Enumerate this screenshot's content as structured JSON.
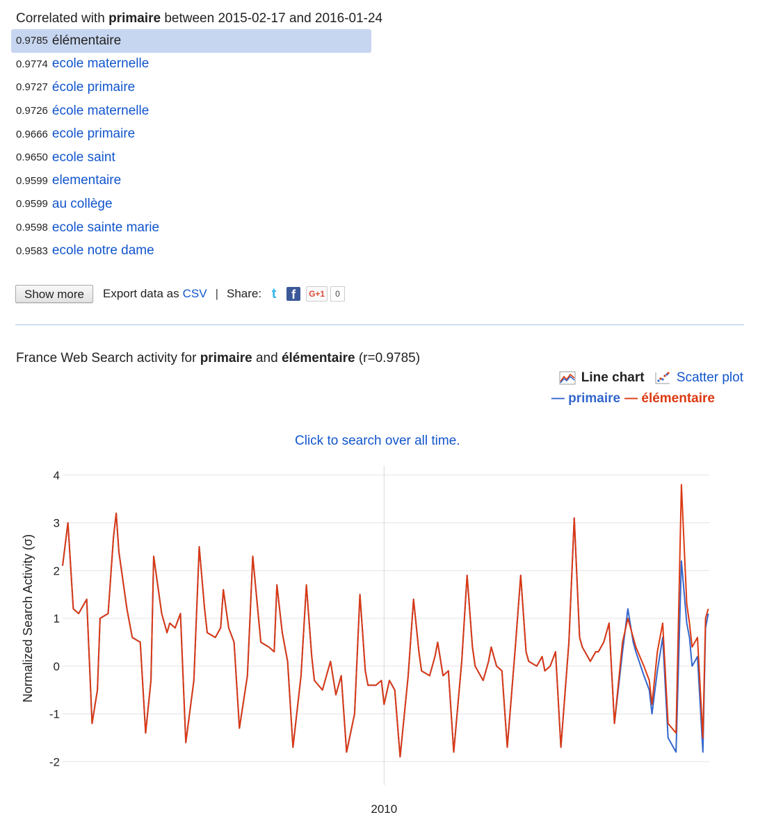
{
  "header": {
    "prefix": "Correlated with",
    "term": "primaire",
    "between": "between",
    "start": "2015-02-17",
    "and": "and",
    "end": "2016-01-24"
  },
  "results": [
    {
      "score": "0.9785",
      "term": "élémentaire",
      "selected": true
    },
    {
      "score": "0.9774",
      "term": "ecole maternelle"
    },
    {
      "score": "0.9727",
      "term": "école primaire"
    },
    {
      "score": "0.9726",
      "term": "école maternelle"
    },
    {
      "score": "0.9666",
      "term": "ecole primaire"
    },
    {
      "score": "0.9650",
      "term": "ecole saint"
    },
    {
      "score": "0.9599",
      "term": "elementaire"
    },
    {
      "score": "0.9599",
      "term": "au collège"
    },
    {
      "score": "0.9598",
      "term": "ecole sainte marie"
    },
    {
      "score": "0.9583",
      "term": "ecole notre dame"
    }
  ],
  "actions": {
    "show_more": "Show more",
    "export_prefix": "Export data as",
    "export_link": "CSV",
    "separator": "|",
    "share": "Share:",
    "gplus_label": "G+1",
    "gplus_count": "0"
  },
  "chart_section": {
    "title_prefix": "France Web Search activity for",
    "term_a": "primaire",
    "and": "and",
    "term_b": "élémentaire",
    "r_text": "(r=0.9785)",
    "view_line": "Line chart",
    "view_scatter": "Scatter plot",
    "legend_a": "— primaire",
    "legend_b": "— élémentaire",
    "click_all": "Click to search over all time."
  },
  "colors": {
    "primaire": "#3366cc",
    "elementaire": "#dc3912",
    "link": "#1155cc",
    "selected_row": "#c7d6f0"
  },
  "chart_data": {
    "type": "line",
    "ylabel": "Normalized Search Activity (σ)",
    "xlabel": "",
    "ylim": [
      -2.2,
      4.2
    ],
    "yticks": [
      4,
      3,
      2,
      1,
      0,
      -1,
      -2
    ],
    "xticks": [
      {
        "label": "2010",
        "x": 2010.0
      }
    ],
    "xlim": [
      2004.0,
      2016.07
    ],
    "grid": true,
    "series": [
      {
        "name": "primaire",
        "color": "#3366cc",
        "x": [
          2004.0,
          2004.1,
          2004.2,
          2004.3,
          2004.45,
          2004.55,
          2004.65,
          2004.7,
          2004.85,
          2004.95,
          2005.0,
          2005.05,
          2005.2,
          2005.3,
          2005.45,
          2005.55,
          2005.65,
          2005.7,
          2005.85,
          2005.95,
          2006.0,
          2006.1,
          2006.2,
          2006.3,
          2006.45,
          2006.55,
          2006.65,
          2006.7,
          2006.85,
          2006.95,
          2007.0,
          2007.1,
          2007.2,
          2007.3,
          2007.45,
          2007.55,
          2007.65,
          2007.7,
          2007.85,
          2007.95,
          2008.0,
          2008.1,
          2008.2,
          2008.3,
          2008.45,
          2008.55,
          2008.65,
          2008.7,
          2008.85,
          2008.95,
          2009.0,
          2009.1,
          2009.2,
          2009.3,
          2009.45,
          2009.55,
          2009.65,
          2009.7,
          2009.85,
          2009.95,
          2010.0,
          2010.1,
          2010.2,
          2010.3,
          2010.45,
          2010.55,
          2010.65,
          2010.7,
          2010.85,
          2010.95,
          2011.0,
          2011.1,
          2011.2,
          2011.3,
          2011.45,
          2011.55,
          2011.65,
          2011.7,
          2011.85,
          2011.95,
          2012.0,
          2012.1,
          2012.2,
          2012.3,
          2012.45,
          2012.55,
          2012.65,
          2012.7,
          2012.85,
          2012.95,
          2013.0,
          2013.1,
          2013.2,
          2013.3,
          2013.45,
          2013.55,
          2013.65,
          2013.7,
          2013.85,
          2013.95,
          2014.0,
          2014.1,
          2014.2,
          2014.3,
          2014.45,
          2014.55,
          2014.65,
          2014.7,
          2014.85,
          2014.95,
          2015.0,
          2015.1,
          2015.2,
          2015.3,
          2015.45,
          2015.55,
          2015.65,
          2015.7,
          2015.75,
          2015.85,
          2015.95,
          2016.0,
          2016.05
        ],
        "y": [
          2.1,
          3.0,
          1.2,
          1.1,
          1.4,
          -1.2,
          -0.5,
          1.0,
          1.1,
          2.7,
          3.2,
          2.4,
          1.2,
          0.6,
          0.5,
          -1.4,
          -0.3,
          2.3,
          1.1,
          0.7,
          0.9,
          0.8,
          1.1,
          -1.6,
          -0.3,
          2.5,
          1.2,
          0.7,
          0.6,
          0.8,
          1.6,
          0.8,
          0.5,
          -1.3,
          -0.2,
          2.3,
          1.1,
          0.5,
          0.4,
          0.3,
          1.7,
          0.7,
          0.1,
          -1.7,
          -0.2,
          1.7,
          0.2,
          -0.3,
          -0.5,
          -0.1,
          0.1,
          -0.6,
          -0.2,
          -1.8,
          -1.0,
          1.5,
          -0.1,
          -0.4,
          -0.4,
          -0.3,
          -0.8,
          -0.3,
          -0.5,
          -1.9,
          -0.2,
          1.4,
          0.3,
          -0.1,
          -0.2,
          0.2,
          0.5,
          -0.2,
          -0.1,
          -1.8,
          0.1,
          1.9,
          0.4,
          0.0,
          -0.3,
          0.1,
          0.4,
          0.0,
          -0.1,
          -1.7,
          0.4,
          1.9,
          0.3,
          0.1,
          0.0,
          0.2,
          -0.1,
          0.0,
          0.3,
          -1.7,
          0.5,
          3.1,
          0.6,
          0.4,
          0.1,
          0.3,
          0.3,
          0.5,
          0.9,
          -1.2,
          0.3,
          1.2,
          0.5,
          0.3,
          -0.2,
          -0.5,
          -1.0,
          -0.1,
          0.6,
          -1.5,
          -1.8,
          2.2,
          0.9,
          0.6,
          0.0,
          0.2,
          -1.8,
          0.8,
          1.1
        ]
      },
      {
        "name": "élémentaire",
        "color": "#dc3912",
        "x": [
          2004.0,
          2004.1,
          2004.2,
          2004.3,
          2004.45,
          2004.55,
          2004.65,
          2004.7,
          2004.85,
          2004.95,
          2005.0,
          2005.05,
          2005.2,
          2005.3,
          2005.45,
          2005.55,
          2005.65,
          2005.7,
          2005.85,
          2005.95,
          2006.0,
          2006.1,
          2006.2,
          2006.3,
          2006.45,
          2006.55,
          2006.65,
          2006.7,
          2006.85,
          2006.95,
          2007.0,
          2007.1,
          2007.2,
          2007.3,
          2007.45,
          2007.55,
          2007.65,
          2007.7,
          2007.85,
          2007.95,
          2008.0,
          2008.1,
          2008.2,
          2008.3,
          2008.45,
          2008.55,
          2008.65,
          2008.7,
          2008.85,
          2008.95,
          2009.0,
          2009.1,
          2009.2,
          2009.3,
          2009.45,
          2009.55,
          2009.65,
          2009.7,
          2009.85,
          2009.95,
          2010.0,
          2010.1,
          2010.2,
          2010.3,
          2010.45,
          2010.55,
          2010.65,
          2010.7,
          2010.85,
          2010.95,
          2011.0,
          2011.1,
          2011.2,
          2011.3,
          2011.45,
          2011.55,
          2011.65,
          2011.7,
          2011.85,
          2011.95,
          2012.0,
          2012.1,
          2012.2,
          2012.3,
          2012.45,
          2012.55,
          2012.65,
          2012.7,
          2012.85,
          2012.95,
          2013.0,
          2013.1,
          2013.2,
          2013.3,
          2013.45,
          2013.55,
          2013.65,
          2013.7,
          2013.85,
          2013.95,
          2014.0,
          2014.1,
          2014.2,
          2014.3,
          2014.45,
          2014.55,
          2014.65,
          2014.7,
          2014.85,
          2014.95,
          2015.0,
          2015.1,
          2015.2,
          2015.3,
          2015.45,
          2015.55,
          2015.65,
          2015.7,
          2015.75,
          2015.85,
          2015.95,
          2016.0,
          2016.05
        ],
        "y": [
          2.1,
          3.0,
          1.2,
          1.1,
          1.4,
          -1.2,
          -0.5,
          1.0,
          1.1,
          2.7,
          3.2,
          2.4,
          1.2,
          0.6,
          0.5,
          -1.4,
          -0.3,
          2.3,
          1.1,
          0.7,
          0.9,
          0.8,
          1.1,
          -1.6,
          -0.3,
          2.5,
          1.2,
          0.7,
          0.6,
          0.8,
          1.6,
          0.8,
          0.5,
          -1.3,
          -0.2,
          2.3,
          1.1,
          0.5,
          0.4,
          0.3,
          1.7,
          0.7,
          0.1,
          -1.7,
          -0.2,
          1.7,
          0.2,
          -0.3,
          -0.5,
          -0.1,
          0.1,
          -0.6,
          -0.2,
          -1.8,
          -1.0,
          1.5,
          -0.1,
          -0.4,
          -0.4,
          -0.3,
          -0.8,
          -0.3,
          -0.5,
          -1.9,
          -0.2,
          1.4,
          0.3,
          -0.1,
          -0.2,
          0.2,
          0.5,
          -0.2,
          -0.1,
          -1.8,
          0.1,
          1.9,
          0.4,
          0.0,
          -0.3,
          0.1,
          0.4,
          0.0,
          -0.1,
          -1.7,
          0.4,
          1.9,
          0.3,
          0.1,
          0.0,
          0.2,
          -0.1,
          0.0,
          0.3,
          -1.7,
          0.5,
          3.1,
          0.6,
          0.4,
          0.1,
          0.3,
          0.3,
          0.5,
          0.9,
          -1.2,
          0.5,
          1.0,
          0.6,
          0.4,
          0.0,
          -0.3,
          -0.8,
          0.3,
          0.9,
          -1.2,
          -1.4,
          3.8,
          1.3,
          0.9,
          0.4,
          0.6,
          -1.5,
          1.0,
          1.2
        ]
      }
    ]
  }
}
